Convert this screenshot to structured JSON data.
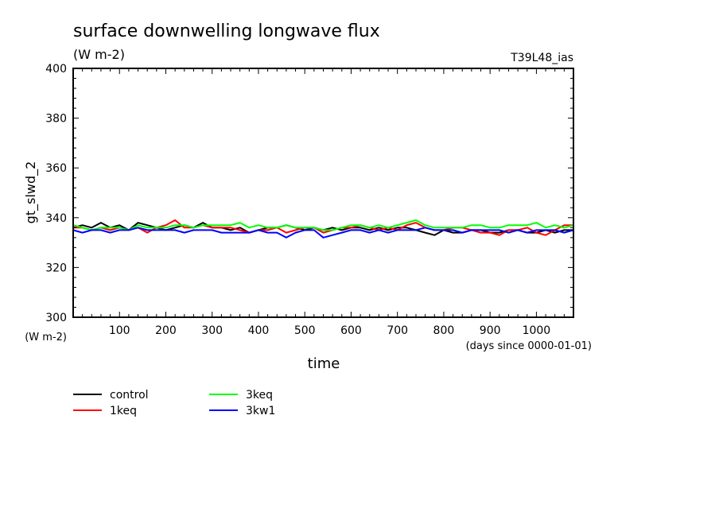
{
  "chart_data": {
    "type": "line",
    "title": "surface downwelling longwave flux",
    "subtitle": "(W m-2)",
    "experiment_label": "T39L48_ias",
    "ylabel": "gt_slwd_2",
    "yunit_label": "(W m-2)",
    "xlabel": "time",
    "xunit_label": "(days since 0000-01-01)",
    "xlim": [
      0,
      1080
    ],
    "ylim": [
      300,
      400
    ],
    "xticks": [
      100,
      200,
      300,
      400,
      500,
      600,
      700,
      800,
      900,
      1000
    ],
    "yticks": [
      300,
      320,
      340,
      360,
      380,
      400
    ],
    "grid": false,
    "legend_position": "bottom-left",
    "x": [
      0,
      20,
      40,
      60,
      80,
      100,
      120,
      140,
      160,
      180,
      200,
      220,
      240,
      260,
      280,
      300,
      320,
      340,
      360,
      380,
      400,
      420,
      440,
      460,
      480,
      500,
      520,
      540,
      560,
      580,
      600,
      620,
      640,
      660,
      680,
      700,
      720,
      740,
      760,
      780,
      800,
      820,
      840,
      860,
      880,
      900,
      920,
      940,
      960,
      980,
      1000,
      1020,
      1040,
      1060,
      1080
    ],
    "series": [
      {
        "name": "control",
        "color": "#000000",
        "values": [
          336,
          337,
          336,
          338,
          336,
          337,
          335,
          338,
          337,
          336,
          335,
          336,
          337,
          336,
          338,
          336,
          336,
          335,
          336,
          334,
          335,
          336,
          336,
          337,
          336,
          335,
          336,
          335,
          336,
          335,
          336,
          336,
          335,
          336,
          335,
          336,
          336,
          335,
          334,
          333,
          335,
          334,
          334,
          335,
          335,
          334,
          334,
          335,
          335,
          334,
          334,
          335,
          334,
          335,
          335
        ]
      },
      {
        "name": "1keq",
        "color": "#ff0000",
        "values": [
          336,
          336,
          335,
          336,
          335,
          336,
          335,
          336,
          334,
          336,
          337,
          339,
          336,
          336,
          337,
          336,
          336,
          336,
          335,
          334,
          335,
          335,
          336,
          334,
          335,
          336,
          336,
          334,
          335,
          336,
          336,
          337,
          336,
          335,
          336,
          335,
          337,
          338,
          336,
          335,
          335,
          336,
          336,
          335,
          334,
          334,
          333,
          335,
          335,
          336,
          334,
          333,
          335,
          337,
          337
        ]
      },
      {
        "name": "3keq",
        "color": "#00ff00",
        "values": [
          337,
          336,
          335,
          336,
          336,
          336,
          335,
          337,
          336,
          336,
          336,
          337,
          337,
          336,
          337,
          337,
          337,
          337,
          338,
          336,
          337,
          336,
          336,
          337,
          336,
          336,
          336,
          335,
          335,
          336,
          337,
          337,
          336,
          337,
          336,
          337,
          338,
          339,
          337,
          336,
          336,
          336,
          336,
          337,
          337,
          336,
          336,
          337,
          337,
          337,
          338,
          336,
          337,
          336,
          337
        ]
      },
      {
        "name": "3kw1",
        "color": "#0000ff",
        "values": [
          335,
          334,
          335,
          335,
          334,
          335,
          335,
          336,
          335,
          335,
          335,
          335,
          334,
          335,
          335,
          335,
          334,
          334,
          334,
          334,
          335,
          334,
          334,
          332,
          334,
          335,
          335,
          332,
          333,
          334,
          335,
          335,
          334,
          335,
          334,
          335,
          335,
          335,
          336,
          335,
          335,
          335,
          334,
          335,
          335,
          335,
          335,
          334,
          335,
          334,
          335,
          335,
          335,
          334,
          335
        ]
      }
    ]
  }
}
